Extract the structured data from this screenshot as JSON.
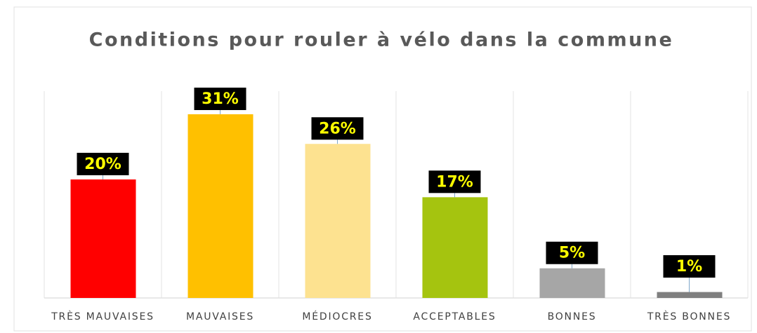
{
  "chart_data": {
    "type": "bar",
    "title": "Conditions pour rouler à vélo dans la commune",
    "categories": [
      "TRÈS MAUVAISES",
      "MAUVAISES",
      "MÉDIOCRES",
      "ACCEPTABLES",
      "BONNES",
      "TRÈS BONNES"
    ],
    "values": [
      20,
      31,
      26,
      17,
      5,
      1
    ],
    "value_labels": [
      "20%",
      "31%",
      "26%",
      "17%",
      "5%",
      "1%"
    ],
    "colors": [
      "#ff0000",
      "#ffc000",
      "#fde290",
      "#a5c40f",
      "#a6a6a6",
      "#7f7f7f"
    ]
  }
}
